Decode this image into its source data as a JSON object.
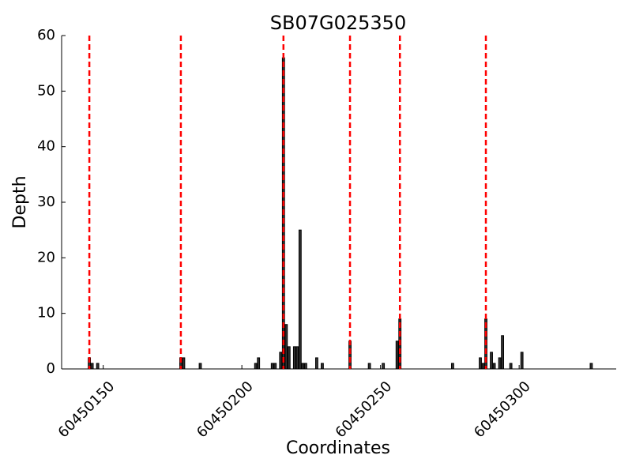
{
  "chart_data": {
    "type": "bar",
    "title": "SB07G025350",
    "x_label": "Coordinates",
    "y_label": "Depth",
    "x": [
      60450145,
      60450146,
      60450148,
      60450178,
      60450179,
      60450185,
      60450205,
      60450206,
      60450211,
      60450212,
      60450214,
      60450215,
      60450216,
      60450217,
      60450219,
      60450220,
      60450221,
      60450222,
      60450223,
      60450227,
      60450229,
      60450239,
      60450246,
      60450251,
      60450256,
      60450257,
      60450276,
      60450286,
      60450287,
      60450288,
      60450290,
      60450291,
      60450293,
      60450294,
      60450297,
      60450301,
      60450326
    ],
    "values": [
      2,
      1,
      1,
      2,
      2,
      1,
      1,
      2,
      1,
      1,
      3,
      56,
      8,
      4,
      4,
      4,
      25,
      1,
      1,
      2,
      1,
      5,
      1,
      1,
      5,
      9,
      1,
      2,
      1,
      9,
      3,
      1,
      2,
      6,
      1,
      3,
      1
    ],
    "color": "#333333",
    "vlines": [
      60450145,
      60450178,
      60450215,
      60450239,
      60450257,
      60450288
    ],
    "vline_color": "#ff0000",
    "xlim": [
      60450135,
      60450335
    ],
    "xticks": [
      60450150,
      60450200,
      60450250,
      60450300
    ],
    "ylim": [
      0,
      60
    ],
    "yticks": [
      0,
      10,
      20,
      30,
      40,
      50,
      60
    ]
  }
}
